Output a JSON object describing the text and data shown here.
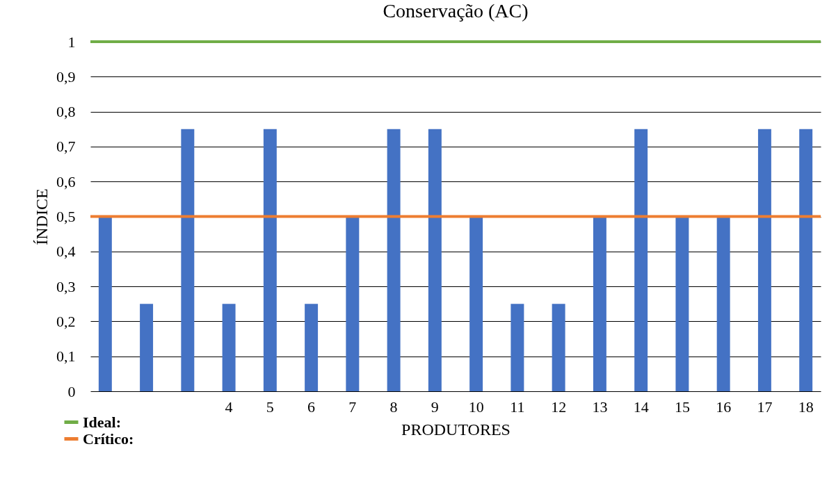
{
  "chart_data": {
    "type": "bar",
    "title": "Conservação (AC)",
    "xlabel": "PRODUTORES",
    "ylabel": "ÍNDICE",
    "categories": [
      null,
      null,
      null,
      "4",
      "5",
      "6",
      "7",
      "8",
      "9",
      "10",
      "11",
      "12",
      "13",
      "14",
      "15",
      "16",
      "17",
      "18"
    ],
    "values": [
      0.5,
      0.25,
      0.75,
      0.25,
      0.75,
      0.25,
      0.5,
      0.75,
      0.75,
      0.5,
      0.25,
      0.25,
      0.5,
      0.75,
      0.5,
      0.5,
      0.75,
      0.75
    ],
    "color": "#4472c4",
    "ylim": [
      0,
      1
    ],
    "yticks": [
      0,
      {
        "value": 0.1,
        "label": "0,1"
      },
      {
        "value": 0.2,
        "label": "0,2"
      },
      {
        "value": 0.3,
        "label": "0,3"
      },
      {
        "value": 0.4,
        "label": "0,4"
      },
      {
        "value": 0.5,
        "label": "0,5"
      },
      {
        "value": 0.6,
        "label": "0,6"
      },
      {
        "value": 0.7,
        "label": "0,7"
      },
      {
        "value": 0.8,
        "label": "0,8"
      },
      {
        "value": 0.9,
        "label": "0,9"
      },
      1
    ],
    "grid": "y",
    "legend": "bottom left",
    "ref_lines": [
      {
        "axis": "y",
        "value": 1,
        "label": "Ideal:",
        "color": "#70ad47"
      },
      {
        "axis": "y",
        "value": 0.5,
        "label": "Crítico:",
        "color": "#ed7d31"
      }
    ]
  }
}
